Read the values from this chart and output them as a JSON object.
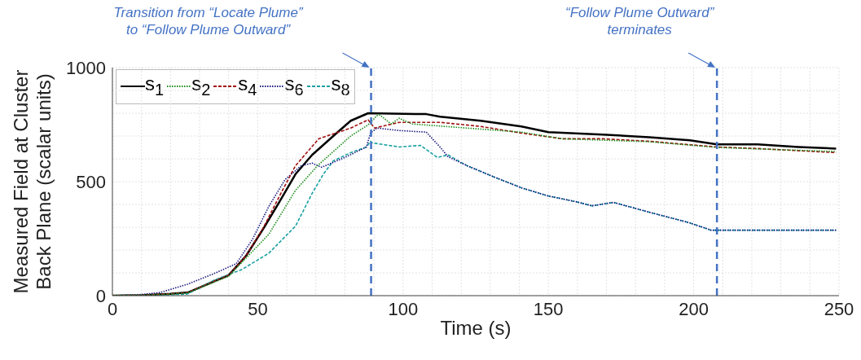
{
  "chart_data": {
    "type": "line",
    "xlabel": "Time  (s)",
    "ylabel": "Measured Field at Cluster\nBack Plane  (scalar units)",
    "xlim": [
      0,
      250
    ],
    "ylim": [
      0,
      1000
    ],
    "xticks": [
      0,
      {
        "value": 10,
        "label": null
      },
      {
        "value": 20,
        "label": null
      },
      {
        "value": 30,
        "label": null
      },
      {
        "value": 40,
        "label": null
      },
      50,
      {
        "value": 60,
        "label": null
      },
      {
        "value": 70,
        "label": null
      },
      {
        "value": 80,
        "label": null
      },
      {
        "value": 90,
        "label": null
      },
      100,
      {
        "value": 110,
        "label": null
      },
      {
        "value": 120,
        "label": null
      },
      {
        "value": 130,
        "label": null
      },
      {
        "value": 140,
        "label": null
      },
      150,
      {
        "value": 160,
        "label": null
      },
      {
        "value": 170,
        "label": null
      },
      {
        "value": 180,
        "label": null
      },
      {
        "value": 190,
        "label": null
      },
      200,
      {
        "value": 210,
        "label": null
      },
      {
        "value": 220,
        "label": null
      },
      {
        "value": 230,
        "label": null
      },
      {
        "value": 240,
        "label": null
      },
      250
    ],
    "yticks": [
      0,
      {
        "value": 100,
        "label": null
      },
      {
        "value": 200,
        "label": null
      },
      {
        "value": 300,
        "label": null
      },
      {
        "value": 400,
        "label": null
      },
      500,
      {
        "value": 600,
        "label": null
      },
      {
        "value": 700,
        "label": null
      },
      {
        "value": 800,
        "label": null
      },
      {
        "value": 900,
        "label": null
      },
      1000
    ],
    "grid": true,
    "legend": "top left",
    "marker": "none",
    "series": [
      {
        "name": "s$_{1}$",
        "color": "#000000",
        "line_style": "solid",
        "x": [
          0,
          10,
          20,
          26,
          40,
          46,
          52,
          57.5,
          63,
          68.7,
          76,
          82,
          88,
          108,
          112.7,
          126.7,
          140.7,
          150,
          168.7,
          184.7,
          198.7,
          208,
          222,
          236,
          249
        ],
        "values": [
          0,
          2,
          8,
          14,
          90,
          175,
          295,
          412,
          533,
          617,
          700,
          767,
          800,
          796,
          785,
          767,
          742,
          717,
          706,
          695,
          681,
          663,
          663,
          652,
          645
        ]
      },
      {
        "name": "s$_{2}$",
        "color": "#1a8c1a",
        "line_style": "dotted",
        "x": [
          0,
          10,
          20,
          26,
          40,
          46,
          53.8,
          63,
          70.6,
          82,
          88,
          91,
          92,
          95.9,
          98.7,
          103,
          140.7,
          154.7,
          184.7,
          208,
          230,
          249
        ],
        "values": [
          0,
          2,
          7,
          13,
          85,
          165,
          269,
          462,
          570,
          700,
          749,
          789,
          792,
          753,
          778,
          753,
          717,
          688,
          675,
          650,
          640,
          632
        ]
      },
      {
        "name": "s$_{4}$",
        "color": "#a01010",
        "line_style": "dashed",
        "x": [
          0,
          10,
          20,
          26,
          40,
          46,
          52,
          57.5,
          63,
          71,
          82,
          88,
          90.2,
          98.7,
          112.7,
          126.7,
          140.7,
          154.7,
          168.7,
          184.7,
          208,
          222,
          249
        ],
        "values": [
          0,
          2,
          8,
          14,
          90,
          175,
          300,
          437,
          570,
          688,
          735,
          771,
          735,
          760,
          760,
          742,
          713,
          688,
          688,
          677,
          652,
          645,
          627
        ]
      },
      {
        "name": "s$_{6}$",
        "color": "#1a1a80",
        "line_style": "dotted",
        "x": [
          0,
          10,
          16.5,
          25.8,
          35,
          42.6,
          48.2,
          53.8,
          59.4,
          65,
          68.7,
          72,
          80,
          87.4,
          88.8,
          91,
          98.7,
          108,
          112.7,
          115.5,
          122,
          131.4,
          140.7,
          150,
          159.5,
          165,
          172.4,
          184.7,
          198.7,
          206,
          222,
          249
        ],
        "values": [
          0,
          5,
          14,
          50,
          97,
          140,
          247,
          391,
          509,
          570,
          581,
          563,
          606,
          652,
          713,
          735,
          724,
          717,
          652,
          609,
          570,
          520,
          473,
          437,
          412,
          394,
          409,
          366,
          319,
          287,
          287,
          287
        ]
      },
      {
        "name": "s$_{8}$",
        "color": "#1aa0a0",
        "line_style": "dashed",
        "x": [
          0,
          15,
          25.8,
          35,
          44.6,
          53.8,
          63,
          68.7,
          72.6,
          76,
          82,
          87.4,
          88.8,
          89.4,
          98.7,
          106,
          111.8,
          115.5,
          122,
          131.4,
          140.7,
          150,
          159.5,
          165,
          172.4,
          184.7,
          198.7,
          206,
          222,
          249
        ],
        "values": [
          0,
          2,
          7,
          68,
          115,
          186,
          305,
          448,
          533,
          591,
          627,
          652,
          677,
          670,
          652,
          659,
          606,
          617,
          570,
          520,
          473,
          437,
          412,
          394,
          409,
          366,
          319,
          287,
          287,
          287
        ]
      }
    ],
    "ref_lines": [
      {
        "axis": "x",
        "value": 89,
        "label": "Transition from “Locate Plume”\nto “Follow Plume Outward”",
        "color": "#4472c4",
        "line_style": "dashed"
      },
      {
        "axis": "x",
        "value": 208,
        "label": "“Follow Plume Outward”\nterminates",
        "color": "#4472c4",
        "line_style": "dashed"
      }
    ]
  }
}
